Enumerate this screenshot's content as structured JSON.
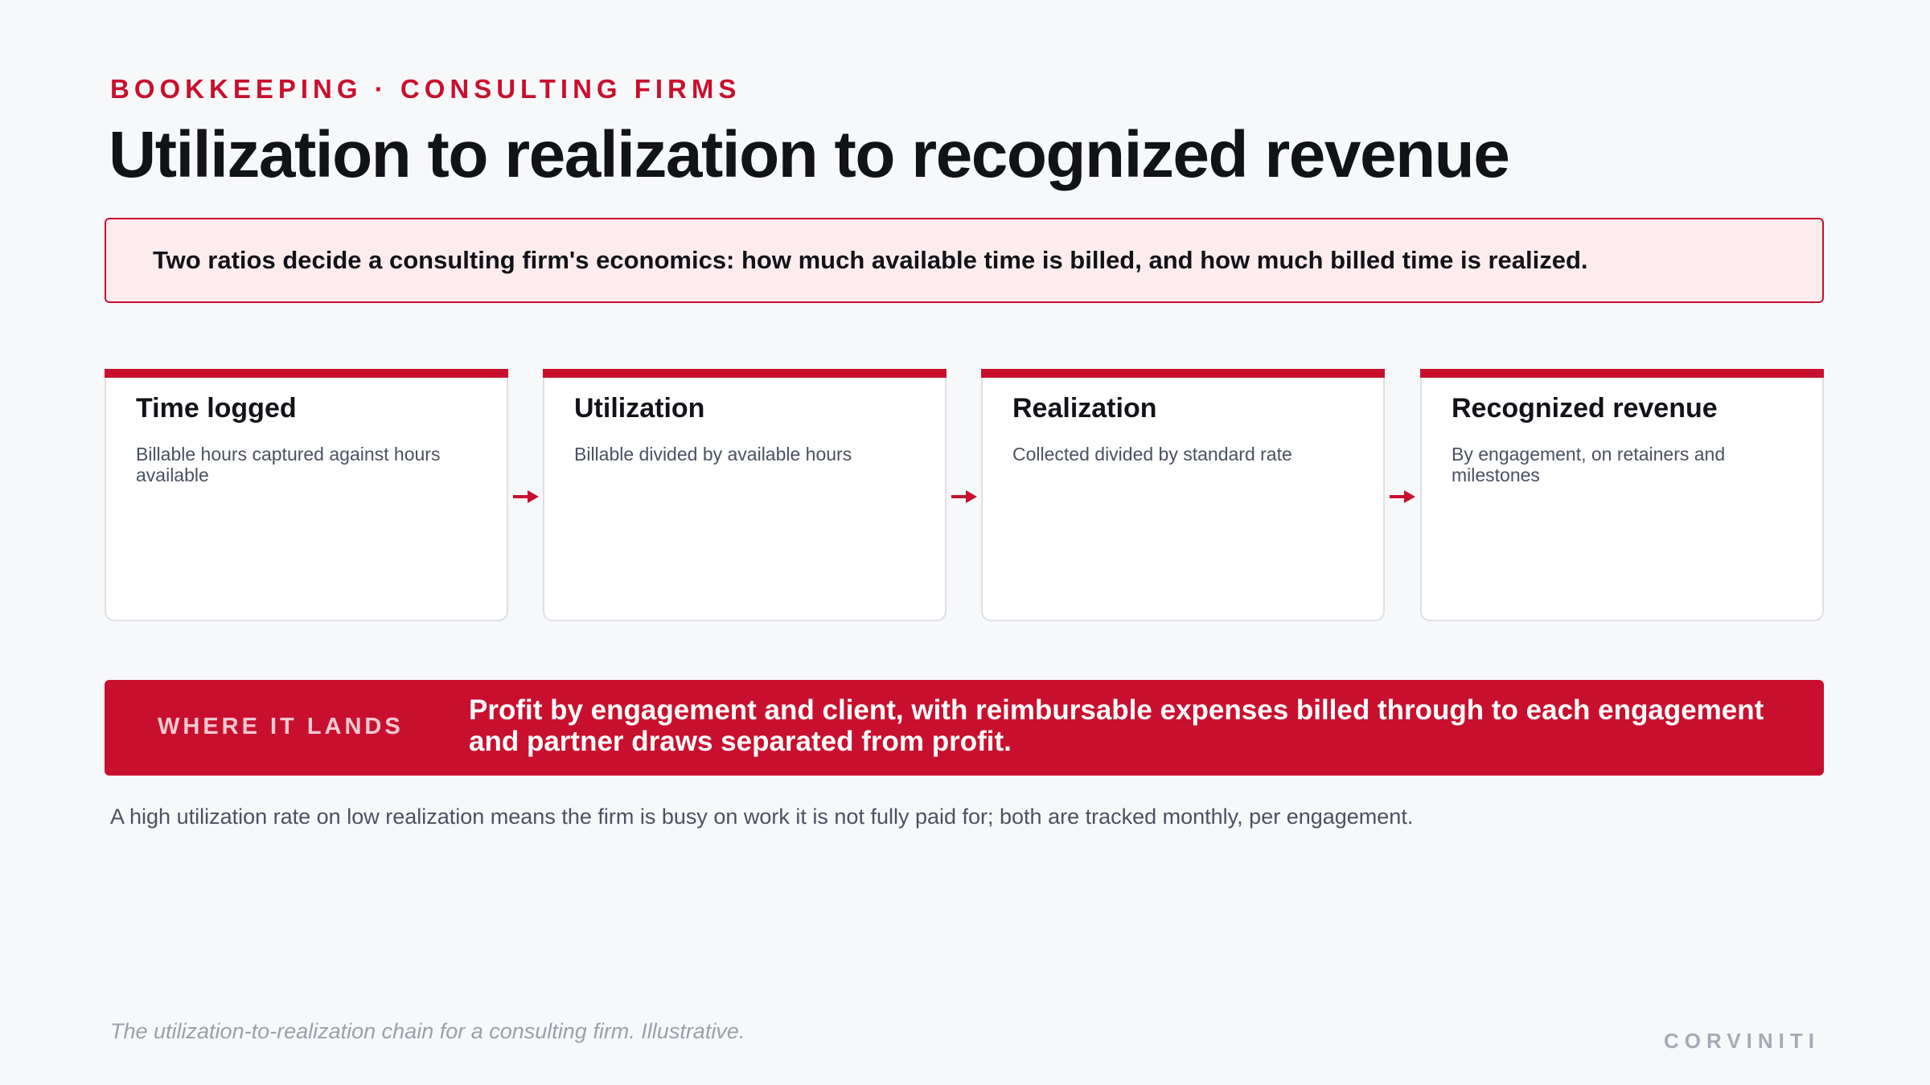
{
  "header": {
    "eyebrow": "BOOKKEEPING · CONSULTING FIRMS",
    "title": "Utilization to realization to recognized revenue"
  },
  "callout": {
    "text": "Two ratios decide a consulting firm's economics: how much available time is billed, and how much billed time is realized."
  },
  "flow": {
    "steps": [
      {
        "title": "Time logged",
        "description": "Billable hours captured against hours available"
      },
      {
        "title": "Utilization",
        "description": "Billable divided by available hours"
      },
      {
        "title": "Realization",
        "description": "Collected divided by standard rate"
      },
      {
        "title": "Recognized revenue",
        "description": "By engagement, on retainers and milestones"
      }
    ],
    "arrow_icon": "arrow-right-icon"
  },
  "landing": {
    "label": "WHERE IT LANDS",
    "text": "Profit by engagement and client, with reimbursable expenses billed through to each engagement and partner draws separated from profit."
  },
  "note": "A high utilization rate on low realization means the firm is busy on work it is not fully paid for; both are tracked monthly, per engagement.",
  "footer": {
    "caption": "The utilization-to-realization chain for a consulting firm. Illustrative.",
    "brand": "CORVINITI"
  },
  "colors": {
    "accent": "#c8102e",
    "callout_bg": "#fdecee",
    "background": "#f7f8fa"
  }
}
